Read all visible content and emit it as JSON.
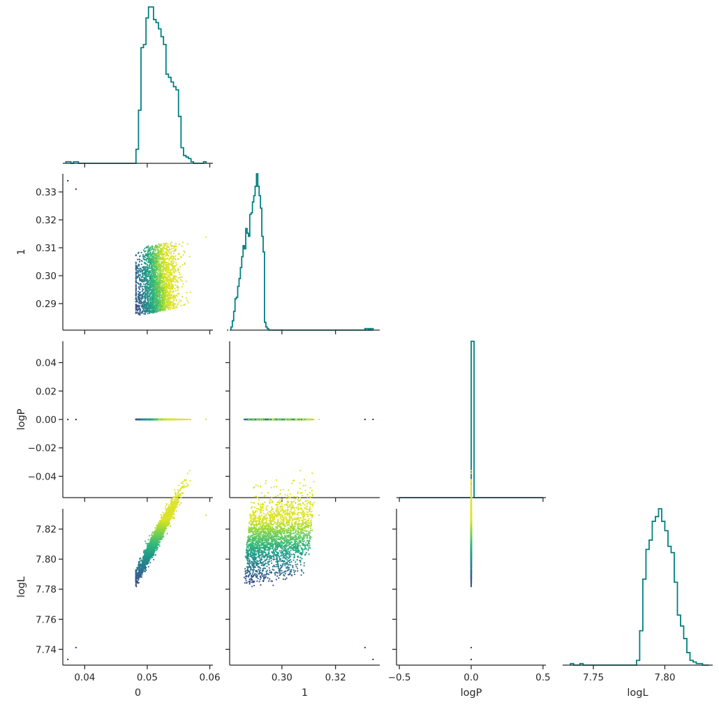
{
  "chart_data": {
    "type": "corner-plot",
    "variables": [
      "0",
      "1",
      "logP",
      "logL"
    ],
    "axis_labels": {
      "x": [
        "0",
        "1",
        "logP",
        "logL"
      ],
      "y": [
        "",
        "1",
        "logP",
        "logL"
      ]
    },
    "ranges": {
      "0": [
        0.0365,
        0.0605
      ],
      "1": [
        0.2805,
        0.3365
      ],
      "logP": [
        -0.52,
        0.52
      ],
      "logL": [
        7.7285,
        7.8335
      ]
    },
    "y_ranges": {
      "1": [
        0.2805,
        0.3365
      ],
      "logP": [
        -0.055,
        0.055
      ],
      "logL": [
        7.7295,
        7.8335
      ]
    },
    "ticks": {
      "0": [
        0.04,
        0.05,
        0.06
      ],
      "1": [
        0.3,
        0.32
      ],
      "logP": [
        -0.5,
        0.0,
        0.5
      ],
      "logL": [
        7.75,
        7.8
      ]
    },
    "tick_labels": {
      "0": [
        "0.04",
        "0.05",
        "0.06"
      ],
      "1": [
        "0.30",
        "0.32"
      ],
      "logP": [
        "−0.5",
        "0.0",
        "0.5"
      ],
      "logL": [
        "7.75",
        "7.80"
      ]
    },
    "y_ticks": {
      "1": [
        0.29,
        0.3,
        0.31,
        0.32,
        0.33
      ],
      "logP": [
        -0.04,
        -0.02,
        0.0,
        0.02,
        0.04
      ],
      "logL": [
        7.74,
        7.76,
        7.78,
        7.8,
        7.82
      ]
    },
    "y_tick_labels": {
      "1": [
        "0.29",
        "0.30",
        "0.31",
        "0.32",
        "0.33"
      ],
      "logP": [
        "−0.04",
        "−0.02",
        "0.00",
        "0.02",
        "0.04"
      ],
      "logL": [
        "7.74",
        "7.76",
        "7.78",
        "7.80",
        "7.82"
      ]
    },
    "histograms": {
      "0": {
        "edges": [
          0.037,
          0.0374,
          0.0378,
          0.0382,
          0.0386,
          0.039,
          0.0394,
          0.0398,
          0.0402,
          0.0406,
          0.041,
          0.0414,
          0.0418,
          0.0422,
          0.0426,
          0.043,
          0.0434,
          0.0438,
          0.0442,
          0.0446,
          0.045,
          0.0454,
          0.0458,
          0.0462,
          0.0466,
          0.047,
          0.0474,
          0.0478,
          0.0482,
          0.0486,
          0.049,
          0.0494,
          0.0498,
          0.0502,
          0.0506,
          0.051,
          0.0514,
          0.0518,
          0.0522,
          0.0526,
          0.053,
          0.0534,
          0.0538,
          0.0542,
          0.0546,
          0.055,
          0.0554,
          0.0558,
          0.0562,
          0.0566,
          0.057,
          0.0574,
          0.0578,
          0.0582,
          0.0586,
          0.059,
          0.0594
        ],
        "counts": [
          0.01,
          0.01,
          0.0,
          0.01,
          0.01,
          0.0,
          0.0,
          0.0,
          0.0,
          0.0,
          0.0,
          0.0,
          0.0,
          0.0,
          0.0,
          0.0,
          0.0,
          0.0,
          0.0,
          0.0,
          0.0,
          0.0,
          0.0,
          0.0,
          0.0,
          0.0,
          0.0,
          0.0,
          0.09,
          0.34,
          0.74,
          0.76,
          0.93,
          1.0,
          1.0,
          0.92,
          0.9,
          0.86,
          0.81,
          0.76,
          0.57,
          0.55,
          0.52,
          0.49,
          0.47,
          0.3,
          0.1,
          0.05,
          0.04,
          0.03,
          0.01,
          0.0,
          0.0,
          0.0,
          0.0,
          0.01
        ]
      },
      "1": {
        "edges": [
          0.281,
          0.2815,
          0.282,
          0.2825,
          0.283,
          0.2835,
          0.284,
          0.2845,
          0.285,
          0.2855,
          0.286,
          0.2865,
          0.287,
          0.2875,
          0.288,
          0.2885,
          0.289,
          0.2895,
          0.29,
          0.2905,
          0.291,
          0.2915,
          0.292,
          0.2925,
          0.293,
          0.2935,
          0.294,
          0.2945,
          0.295,
          0.2955,
          0.296,
          0.2965,
          0.297,
          0.2975,
          0.298,
          0.2985,
          0.299,
          0.2995,
          0.3,
          0.3005,
          0.301,
          0.3015,
          0.302,
          0.3025,
          0.303,
          0.3035,
          0.304,
          0.3045,
          0.305,
          0.3055,
          0.306,
          0.3065,
          0.307,
          0.3075,
          0.308,
          0.3085,
          0.309,
          0.3095,
          0.31,
          0.3105,
          0.311,
          0.3115,
          0.312,
          0.3125,
          0.313,
          0.3135,
          0.314,
          0.3145
        ],
        "counts": [
          0.02,
          0.06,
          0.12,
          0.2,
          0.21,
          0.28,
          0.33,
          0.4,
          0.47,
          0.54,
          0.52,
          0.65,
          0.62,
          0.6,
          0.74,
          0.75,
          0.82,
          0.86,
          0.92,
          1.0,
          0.92,
          0.86,
          0.78,
          0.6,
          0.5,
          0.05,
          0.02,
          0.01,
          0.0,
          0.0,
          0.0,
          0.0,
          0.0,
          0.0,
          0.0,
          0.0,
          0.0,
          0.0,
          0.0,
          0.0,
          0.0,
          0.0,
          0.0,
          0.0,
          0.0,
          0.0,
          0.0,
          0.0,
          0.0,
          0.0,
          0.0,
          0.0,
          0.0,
          0.0,
          0.0,
          0.0,
          0.0,
          0.0,
          0.0,
          0.0,
          0.0,
          0.0,
          0.0,
          0.0,
          0.0,
          0.0,
          0.0,
          0.0
        ],
        "extra_bins": [
          [
            0.2795,
            0.28,
            0.0
          ],
          [
            0.331,
            0.3325,
            0.01
          ],
          [
            0.333,
            0.334,
            0.01
          ]
        ]
      },
      "logP": {
        "edges": [
          -0.5,
          -0.48,
          -0.46,
          -0.44,
          -0.42,
          -0.4,
          -0.38,
          -0.36,
          -0.34,
          -0.32,
          -0.3,
          -0.28,
          -0.26,
          -0.24,
          -0.22,
          -0.2,
          -0.18,
          -0.16,
          -0.14,
          -0.12,
          -0.1,
          -0.08,
          -0.06,
          -0.04,
          -0.02,
          0.0,
          0.02,
          0.04,
          0.06,
          0.08,
          0.1,
          0.12,
          0.14,
          0.16,
          0.18,
          0.2,
          0.22,
          0.24,
          0.26,
          0.28,
          0.3,
          0.32,
          0.34,
          0.36,
          0.38,
          0.4,
          0.42,
          0.44,
          0.46,
          0.48,
          0.5
        ],
        "counts": [
          0.0,
          0.0,
          0.0,
          0.0,
          0.0,
          0.0,
          0.0,
          0.0,
          0.0,
          0.0,
          0.0,
          0.0,
          0.0,
          0.0,
          0.0,
          0.0,
          0.0,
          0.0,
          0.0,
          0.0,
          0.0,
          0.0,
          0.0,
          0.0,
          0.0,
          1.0,
          0.0,
          0.0,
          0.0,
          0.0,
          0.0,
          0.0,
          0.0,
          0.0,
          0.0,
          0.0,
          0.0,
          0.0,
          0.0,
          0.0,
          0.0,
          0.0,
          0.0,
          0.0,
          0.0,
          0.0,
          0.0,
          0.0,
          0.0,
          0.0
        ]
      },
      "logL": {
        "edges": [
          7.734,
          7.7362,
          7.7384,
          7.7406,
          7.7428,
          7.745,
          7.7472,
          7.7494,
          7.7516,
          7.7538,
          7.756,
          7.7582,
          7.7604,
          7.7626,
          7.7648,
          7.767,
          7.7692,
          7.7714,
          7.7736,
          7.7758,
          7.778,
          7.7802,
          7.7824,
          7.7846,
          7.7868,
          7.789,
          7.7912,
          7.7934,
          7.7956,
          7.7978,
          7.8,
          7.8022,
          7.8044,
          7.8066,
          7.8088,
          7.811,
          7.8132,
          7.8154,
          7.8176,
          7.8198,
          7.822,
          7.8242,
          7.8264,
          7.8286,
          7.8308
        ],
        "counts": [
          0.01,
          0.0,
          0.0,
          0.01,
          0.0,
          0.0,
          0.0,
          0.0,
          0.0,
          0.0,
          0.0,
          0.0,
          0.0,
          0.0,
          0.0,
          0.0,
          0.0,
          0.0,
          0.0,
          0.0,
          0.0,
          0.03,
          0.22,
          0.55,
          0.74,
          0.8,
          0.92,
          0.95,
          1.0,
          0.92,
          0.86,
          0.76,
          0.72,
          0.53,
          0.32,
          0.25,
          0.17,
          0.08,
          0.03,
          0.02,
          0.01,
          0.01,
          0.0,
          0.0
        ]
      }
    },
    "point_clouds": {
      "main": {
        "n": 2500,
        "x0": {
          "mean": 0.0515,
          "sd": 0.0017,
          "min": 0.0482,
          "max": 0.0575
        },
        "x1": {
          "min": 0.2855,
          "max": 0.3135,
          "upper_vs_x0": {
            "x0": [
              0.0482,
              0.0505,
              0.054,
              0.0575
            ],
            "y": [
              0.3085,
              0.311,
              0.3125,
              0.3135
            ]
          }
        },
        "logP": 0.0,
        "logL": {
          "base": 7.7907,
          "slope_x0": 7.75,
          "slope_x1": 0.35,
          "sd": 0.0022
        }
      },
      "outliers": [
        {
          "x0": 0.0373,
          "x1": 0.334,
          "logP": 0.0,
          "logL": 7.7333
        },
        {
          "x0": 0.0386,
          "x1": 0.331,
          "logP": 0.0,
          "logL": 7.7412
        },
        {
          "x0": 0.0594,
          "x1": 0.3138,
          "logP": 0.0,
          "logL": 7.8292
        }
      ],
      "colormap": "viridis",
      "color_by": "logL",
      "color_range": [
        0.25,
        0.95
      ]
    },
    "colors": {
      "hist": "#008080",
      "axes": "#262626"
    },
    "grid": false,
    "legend": "none"
  }
}
